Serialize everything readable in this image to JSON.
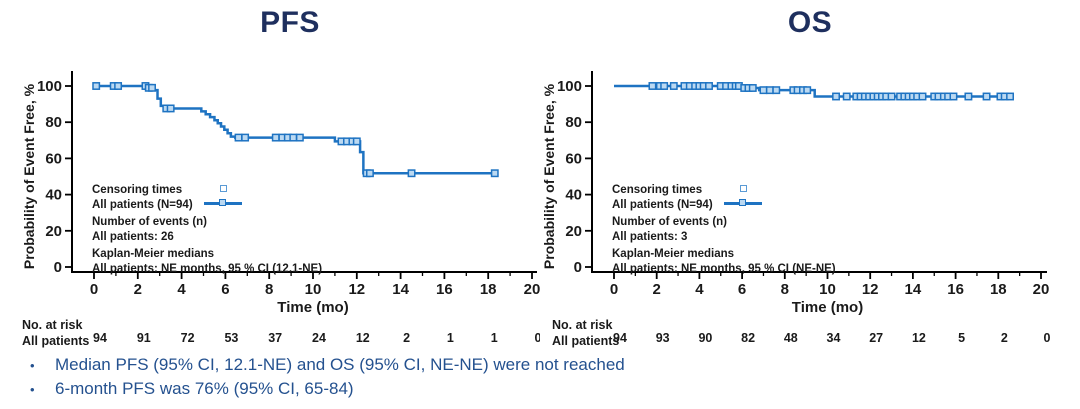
{
  "colors": {
    "curve_blue": "#1E73C2",
    "censor_fill": "#BBD9F2",
    "legend_censor_stroke": "#5B9BD5",
    "title_navy": "#1E2F5E",
    "bullet_blue": "#24518F",
    "axis_black": "#000000",
    "text_black": "#1a1a1a"
  },
  "bullet_char": "•",
  "bullets": {
    "items": [
      {
        "text": "Median PFS (95% CI, 12.1-NE) and OS (95% CI, NE-NE) were not reached"
      },
      {
        "text": "6-month PFS was 76% (95% CI, 65-84)"
      }
    ]
  },
  "chart_data": [
    {
      "id": "pfs",
      "type": "line",
      "km_style": "step-after",
      "title": "PFS",
      "xlabel": "Time (mo)",
      "ylabel": "Probability of Event Free, %",
      "xlim": [
        0,
        20
      ],
      "ylim": [
        0,
        105
      ],
      "x_ticks": [
        0,
        2,
        4,
        6,
        8,
        10,
        12,
        14,
        16,
        18,
        20
      ],
      "y_ticks": [
        0,
        20,
        40,
        60,
        80,
        100
      ],
      "grid": false,
      "legend_position": "inside-lower-left",
      "series": [
        {
          "name": "All patients (N=94)",
          "steps": [
            [
              0,
              100
            ],
            [
              2.4,
              99
            ],
            [
              2.7,
              97.7
            ],
            [
              2.9,
              93
            ],
            [
              3.05,
              89
            ],
            [
              3.2,
              87.6
            ],
            [
              4.9,
              86
            ],
            [
              5.1,
              84.4
            ],
            [
              5.3,
              82.8
            ],
            [
              5.5,
              81.1
            ],
            [
              5.65,
              79.4
            ],
            [
              5.8,
              77.6
            ],
            [
              5.95,
              75.8
            ],
            [
              6.1,
              73.9
            ],
            [
              6.25,
              72
            ],
            [
              6.45,
              71.5
            ],
            [
              11,
              69.4
            ],
            [
              12.15,
              63.5
            ],
            [
              12.3,
              51.8
            ],
            [
              18.3,
              51.8
            ]
          ],
          "censors": [
            [
              0.1,
              100
            ],
            [
              0.9,
              100
            ],
            [
              1.1,
              100
            ],
            [
              2.35,
              100
            ],
            [
              2.5,
              99
            ],
            [
              2.65,
              99
            ],
            [
              3.3,
              87.6
            ],
            [
              3.5,
              87.6
            ],
            [
              6.6,
              71.5
            ],
            [
              6.9,
              71.5
            ],
            [
              8.3,
              71.5
            ],
            [
              8.6,
              71.5
            ],
            [
              8.85,
              71.5
            ],
            [
              9.1,
              71.5
            ],
            [
              9.4,
              71.5
            ],
            [
              11.3,
              69.4
            ],
            [
              11.55,
              69.4
            ],
            [
              11.8,
              69.4
            ],
            [
              12,
              69.4
            ],
            [
              12.45,
              51.8
            ],
            [
              12.6,
              51.8
            ],
            [
              14.5,
              51.8
            ],
            [
              18.3,
              51.8
            ]
          ]
        }
      ],
      "legend": {
        "censoring_label": "Censoring times",
        "series_label": "All patients (N=94)",
        "events_header": "Number of events (n)",
        "events_value": "All patients: 26",
        "medians_header": "Kaplan-Meier medians",
        "medians_value": "All patients: NE months, 95 % CI (12.1-NE)"
      },
      "at_risk": {
        "header": "No. at risk",
        "row_label": "All patients",
        "values": [
          94,
          91,
          72,
          53,
          37,
          24,
          12,
          2,
          1,
          1,
          0
        ]
      }
    },
    {
      "id": "os",
      "type": "line",
      "km_style": "step-after",
      "title": "OS",
      "xlabel": "Time (mo)",
      "ylabel": "Probability of Event Free, %",
      "xlim": [
        0,
        20
      ],
      "ylim": [
        0,
        105
      ],
      "x_ticks": [
        0,
        2,
        4,
        6,
        8,
        10,
        12,
        14,
        16,
        18,
        20
      ],
      "y_ticks": [
        0,
        20,
        40,
        60,
        80,
        100
      ],
      "grid": false,
      "legend_position": "inside-lower-left",
      "series": [
        {
          "name": "All patients (N=94)",
          "steps": [
            [
              0,
              100
            ],
            [
              6,
              98.9
            ],
            [
              6.8,
              97.7
            ],
            [
              9.4,
              94.2
            ],
            [
              18.6,
              94.2
            ]
          ],
          "censors": [
            [
              1.8,
              100
            ],
            [
              2.15,
              100
            ],
            [
              2.35,
              100
            ],
            [
              2.8,
              100
            ],
            [
              3.3,
              100
            ],
            [
              3.55,
              100
            ],
            [
              3.8,
              100
            ],
            [
              4,
              100
            ],
            [
              4.2,
              100
            ],
            [
              4.45,
              100
            ],
            [
              5,
              100
            ],
            [
              5.25,
              100
            ],
            [
              5.5,
              100
            ],
            [
              5.7,
              100
            ],
            [
              5.85,
              100
            ],
            [
              6.1,
              98.9
            ],
            [
              6.3,
              98.9
            ],
            [
              6.5,
              98.9
            ],
            [
              7,
              97.7
            ],
            [
              7.3,
              97.7
            ],
            [
              7.6,
              97.7
            ],
            [
              8.4,
              97.7
            ],
            [
              8.6,
              97.7
            ],
            [
              8.85,
              97.7
            ],
            [
              9.05,
              97.7
            ],
            [
              10.4,
              94.2
            ],
            [
              10.9,
              94.2
            ],
            [
              11.35,
              94.2
            ],
            [
              11.55,
              94.2
            ],
            [
              11.75,
              94.2
            ],
            [
              11.95,
              94.2
            ],
            [
              12.15,
              94.2
            ],
            [
              12.35,
              94.2
            ],
            [
              12.55,
              94.2
            ],
            [
              12.75,
              94.2
            ],
            [
              13,
              94.2
            ],
            [
              13.4,
              94.2
            ],
            [
              13.6,
              94.2
            ],
            [
              13.8,
              94.2
            ],
            [
              14,
              94.2
            ],
            [
              14.2,
              94.2
            ],
            [
              14.45,
              94.2
            ],
            [
              15,
              94.2
            ],
            [
              15.2,
              94.2
            ],
            [
              15.45,
              94.2
            ],
            [
              15.65,
              94.2
            ],
            [
              15.9,
              94.2
            ],
            [
              16.6,
              94.2
            ],
            [
              17.45,
              94.2
            ],
            [
              18.1,
              94.2
            ],
            [
              18.3,
              94.2
            ],
            [
              18.55,
              94.2
            ]
          ]
        }
      ],
      "legend": {
        "censoring_label": "Censoring times",
        "series_label": "All patients (N=94)",
        "events_header": "Number of events (n)",
        "events_value": "All patients: 3",
        "medians_header": "Kaplan-Meier medians",
        "medians_value": "All patients: NE months, 95 % CI (NE-NE)"
      },
      "at_risk": {
        "header": "No. at risk",
        "row_label": "All patients",
        "values": [
          94,
          93,
          90,
          82,
          48,
          34,
          27,
          12,
          5,
          2,
          0
        ]
      }
    }
  ]
}
